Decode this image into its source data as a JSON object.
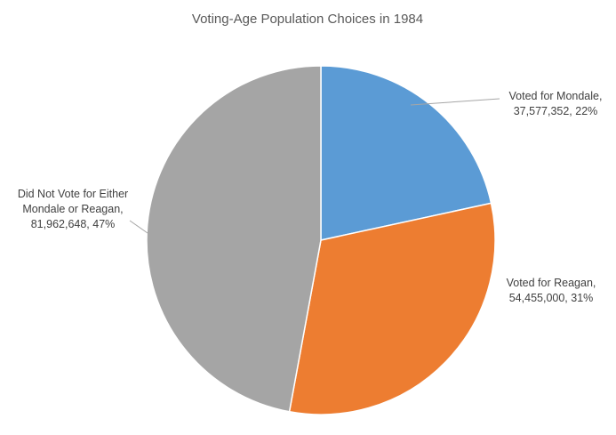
{
  "chart_data": {
    "type": "pie",
    "title": "Voting-Age Population Choices in 1984",
    "start_angle_deg": 0,
    "direction": "clockwise",
    "slices": [
      {
        "label": "Voted for Mondale",
        "value": 37577352,
        "percent": "22%",
        "color": "#5B9BD5",
        "label_lines": [
          "Voted for Mondale,",
          "37,577,352, 22%"
        ]
      },
      {
        "label": "Voted for Reagan",
        "value": 54455000,
        "percent": "31%",
        "color": "#ED7D31",
        "label_lines": [
          "Voted for Reagan,",
          "54,455,000, 31%"
        ]
      },
      {
        "label": "Did Not Vote for Either Mondale or Reagan",
        "value": 81962648,
        "percent": "47%",
        "color": "#A5A5A5",
        "label_lines": [
          "Did Not Vote for Either",
          "Mondale or Reagan,",
          "81,962,648, 47%"
        ]
      }
    ],
    "legend": "none",
    "data_labels": "outside-with-leader-lines"
  }
}
